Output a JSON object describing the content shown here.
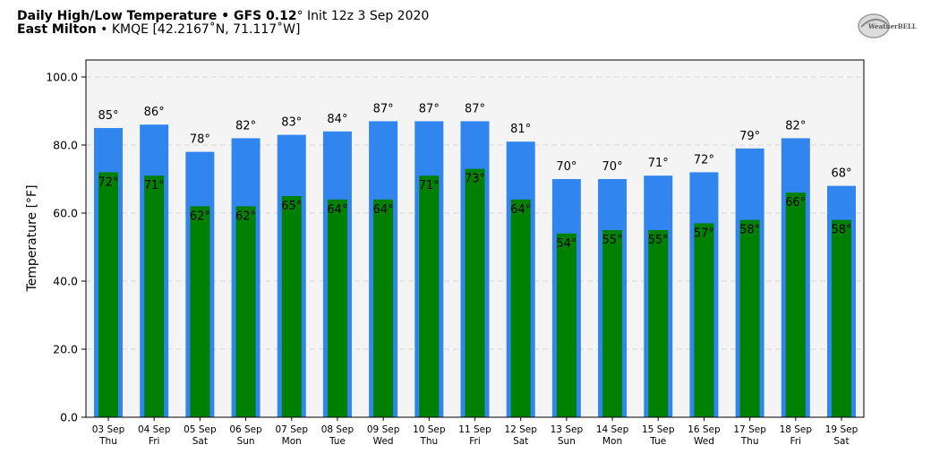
{
  "header": {
    "title_bold": "Daily High/Low Temperature • GFS 0.12",
    "title_deg": "°",
    "title_rest": " Init 12z 3 Sep 2020",
    "location_bold": "East Milton",
    "location_rest": " • KMQE [42.2167˚N, 71.117˚W]"
  },
  "logo": {
    "text": "WeatherBELL",
    "mark_icon": "weatherbell-swirl-icon"
  },
  "colors": {
    "high_bar": "#3086ee",
    "low_bar": "#008000",
    "plot_background": "#f4f4f4",
    "grid": "#d8d8d8"
  },
  "chart_data": {
    "type": "bar",
    "title": "Daily High/Low Temperature • GFS 0.12˚ Init 12z 3 Sep 2020",
    "xlabel": "",
    "ylabel": "Temperature [°F]",
    "ylim": [
      0,
      105
    ],
    "yticks": [
      "0.0",
      "20.0",
      "40.0",
      "60.0",
      "80.0",
      "100.0"
    ],
    "grid": true,
    "categories": [
      [
        "03 Sep",
        "Thu"
      ],
      [
        "04 Sep",
        "Fri"
      ],
      [
        "05 Sep",
        "Sat"
      ],
      [
        "06 Sep",
        "Sun"
      ],
      [
        "07 Sep",
        "Mon"
      ],
      [
        "08 Sep",
        "Tue"
      ],
      [
        "09 Sep",
        "Wed"
      ],
      [
        "10 Sep",
        "Thu"
      ],
      [
        "11 Sep",
        "Fri"
      ],
      [
        "12 Sep",
        "Sat"
      ],
      [
        "13 Sep",
        "Sun"
      ],
      [
        "14 Sep",
        "Mon"
      ],
      [
        "15 Sep",
        "Tue"
      ],
      [
        "16 Sep",
        "Wed"
      ],
      [
        "17 Sep",
        "Thu"
      ],
      [
        "18 Sep",
        "Fri"
      ],
      [
        "19 Sep",
        "Sat"
      ]
    ],
    "series": [
      {
        "values": [
          85,
          86,
          78,
          82,
          83,
          84,
          87,
          87,
          87,
          81,
          70,
          70,
          71,
          72,
          79,
          82,
          68
        ]
      },
      {
        "values": [
          72,
          71,
          62,
          62,
          65,
          64,
          64,
          71,
          73,
          64,
          54,
          55,
          55,
          57,
          58,
          66,
          58
        ]
      }
    ],
    "value_suffix": "°"
  }
}
